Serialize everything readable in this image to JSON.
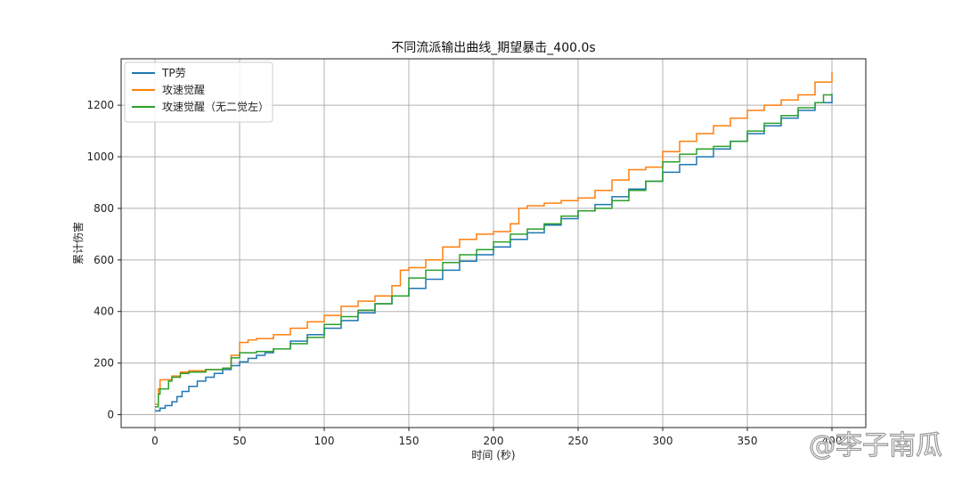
{
  "chart_data": {
    "type": "line",
    "title": "不同流派输出曲线_期望暴击_400.0s",
    "xlabel": "时间 (秒)",
    "ylabel": "累计伤害",
    "xlim": [
      -20,
      420
    ],
    "ylim": [
      -50,
      1380
    ],
    "xticks": [
      0,
      50,
      100,
      150,
      200,
      250,
      300,
      350,
      400
    ],
    "xtick_labels": [
      "0",
      "50",
      "100",
      "150",
      "200",
      "250",
      "300",
      "350",
      "400"
    ],
    "yticks": [
      0,
      200,
      400,
      600,
      800,
      1000,
      1200
    ],
    "ytick_labels": [
      "0",
      "200",
      "400",
      "600",
      "800",
      "1000",
      "1200"
    ],
    "grid": true,
    "legend_position": "top-left",
    "series": [
      {
        "name": "TP劳",
        "color": "#1f77b4",
        "x": [
          0,
          3,
          6,
          10,
          13,
          16,
          20,
          25,
          30,
          35,
          40,
          45,
          50,
          55,
          60,
          65,
          70,
          80,
          90,
          100,
          110,
          120,
          130,
          140,
          150,
          160,
          170,
          180,
          190,
          200,
          210,
          220,
          230,
          240,
          250,
          260,
          270,
          280,
          290,
          300,
          310,
          320,
          330,
          340,
          350,
          360,
          370,
          380,
          390,
          400
        ],
        "y": [
          15,
          25,
          35,
          50,
          70,
          90,
          110,
          130,
          145,
          160,
          175,
          190,
          205,
          218,
          230,
          240,
          255,
          285,
          310,
          335,
          365,
          395,
          430,
          460,
          490,
          525,
          560,
          595,
          620,
          650,
          680,
          705,
          735,
          760,
          790,
          815,
          845,
          875,
          905,
          940,
          970,
          1000,
          1030,
          1060,
          1090,
          1120,
          1150,
          1180,
          1210,
          1240
        ]
      },
      {
        "name": "攻速觉醒",
        "color": "#ff7f0e",
        "x": [
          0,
          2,
          3,
          10,
          15,
          20,
          30,
          40,
          45,
          50,
          55,
          60,
          70,
          80,
          90,
          100,
          110,
          120,
          130,
          140,
          145,
          150,
          160,
          170,
          180,
          190,
          200,
          210,
          215,
          220,
          230,
          240,
          250,
          260,
          270,
          280,
          290,
          300,
          310,
          320,
          330,
          340,
          350,
          360,
          370,
          380,
          390,
          400
        ],
        "y": [
          40,
          100,
          135,
          150,
          165,
          170,
          175,
          180,
          230,
          280,
          290,
          295,
          310,
          335,
          360,
          385,
          420,
          440,
          460,
          500,
          560,
          570,
          600,
          650,
          680,
          700,
          710,
          740,
          800,
          810,
          820,
          830,
          840,
          870,
          910,
          950,
          960,
          1020,
          1060,
          1090,
          1120,
          1150,
          1180,
          1200,
          1220,
          1240,
          1290,
          1330
        ]
      },
      {
        "name": "攻速觉醒（无二觉左）",
        "color": "#2ca02c",
        "x": [
          0,
          2,
          3,
          8,
          10,
          15,
          20,
          30,
          40,
          45,
          50,
          60,
          70,
          80,
          90,
          100,
          110,
          120,
          130,
          140,
          150,
          160,
          170,
          180,
          190,
          200,
          210,
          220,
          230,
          240,
          250,
          260,
          270,
          280,
          290,
          300,
          310,
          320,
          330,
          340,
          350,
          360,
          370,
          380,
          390,
          395,
          400
        ],
        "y": [
          30,
          80,
          100,
          130,
          145,
          160,
          165,
          175,
          180,
          220,
          240,
          245,
          255,
          275,
          300,
          350,
          380,
          405,
          430,
          460,
          530,
          560,
          590,
          620,
          640,
          670,
          700,
          720,
          740,
          770,
          790,
          800,
          830,
          870,
          905,
          980,
          1010,
          1030,
          1040,
          1060,
          1100,
          1130,
          1160,
          1190,
          1210,
          1240,
          1245
        ]
      }
    ]
  },
  "watermark": {
    "text": "@李子南瓜"
  }
}
